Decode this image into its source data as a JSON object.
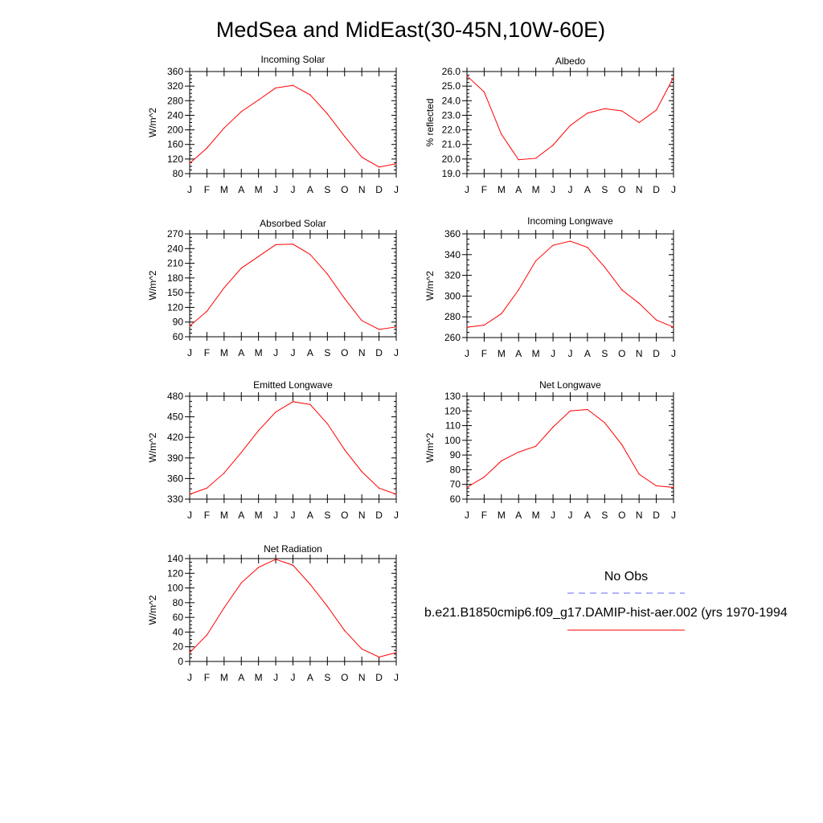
{
  "page_title": "MedSea and MidEast(30-45N,10W-60E)",
  "month_labels": [
    "J",
    "F",
    "M",
    "A",
    "M",
    "J",
    "J",
    "A",
    "S",
    "O",
    "N",
    "D",
    "J"
  ],
  "legend": {
    "obs_label": "No Obs",
    "obs_color": "#6666ff",
    "model_label": "b.e21.B1850cmip6.f09_g17.DAMIP-hist-aer.002 (yrs 1970-1994",
    "model_color": "#ff0000"
  },
  "chart_data": [
    {
      "type": "line",
      "title": "Incoming Solar",
      "ylabel": "W/m^2",
      "xlabel": "",
      "ylim": [
        80,
        360
      ],
      "yticks": [
        "80",
        "120",
        "160",
        "200",
        "240",
        "280",
        "320",
        "360"
      ],
      "series": [
        {
          "values": [
            108,
            150,
            205,
            250,
            282,
            315,
            322,
            296,
            244,
            182,
            125,
            98,
            107
          ]
        }
      ]
    },
    {
      "type": "line",
      "title": "Albedo",
      "ylabel": "% reflected",
      "xlabel": "",
      "ylim": [
        19.0,
        26.0
      ],
      "yticks": [
        "19.0",
        "20.0",
        "21.0",
        "22.0",
        "23.0",
        "24.0",
        "25.0",
        "26.0"
      ],
      "series": [
        {
          "values": [
            25.7,
            24.6,
            21.7,
            19.95,
            20.05,
            20.95,
            22.3,
            23.15,
            23.45,
            23.3,
            22.5,
            23.35,
            25.6
          ]
        }
      ]
    },
    {
      "type": "line",
      "title": "Absorbed Solar",
      "ylabel": "W/m^2",
      "xlabel": "",
      "ylim": [
        60,
        270
      ],
      "yticks": [
        "60",
        "90",
        "120",
        "150",
        "180",
        "210",
        "240",
        "270"
      ],
      "series": [
        {
          "values": [
            82,
            112,
            160,
            200,
            224,
            248,
            249,
            228,
            188,
            138,
            93,
            75,
            80
          ]
        }
      ]
    },
    {
      "type": "line",
      "title": "Incoming Longwave",
      "ylabel": "W/m^2",
      "xlabel": "",
      "ylim": [
        260,
        360
      ],
      "yticks": [
        "260",
        "280",
        "300",
        "320",
        "340",
        "360"
      ],
      "series": [
        {
          "values": [
            270,
            272,
            283,
            306,
            334,
            349,
            353,
            347,
            328,
            306,
            293,
            277,
            270
          ]
        }
      ]
    },
    {
      "type": "line",
      "title": "Emitted Longwave",
      "ylabel": "W/m^2",
      "xlabel": "",
      "ylim": [
        330,
        480
      ],
      "yticks": [
        "330",
        "360",
        "390",
        "420",
        "450",
        "480"
      ],
      "series": [
        {
          "values": [
            337,
            346,
            368,
            398,
            430,
            457,
            472,
            468,
            440,
            402,
            370,
            346,
            337
          ]
        }
      ]
    },
    {
      "type": "line",
      "title": "Net Longwave",
      "ylabel": "W/m^2",
      "xlabel": "",
      "ylim": [
        60,
        130
      ],
      "yticks": [
        "60",
        "70",
        "80",
        "90",
        "100",
        "110",
        "120",
        "130"
      ],
      "series": [
        {
          "values": [
            68,
            75,
            86,
            92,
            96,
            109,
            120,
            121,
            112,
            97,
            77,
            69,
            68
          ]
        }
      ]
    },
    {
      "type": "line",
      "title": "Net Radiation",
      "ylabel": "W/m^2",
      "xlabel": "",
      "ylim": [
        0,
        140
      ],
      "yticks": [
        "0",
        "20",
        "40",
        "60",
        "80",
        "100",
        "120",
        "140"
      ],
      "series": [
        {
          "values": [
            12,
            36,
            73,
            107,
            128,
            139,
            131,
            105,
            75,
            42,
            17,
            6,
            12
          ]
        }
      ]
    }
  ]
}
